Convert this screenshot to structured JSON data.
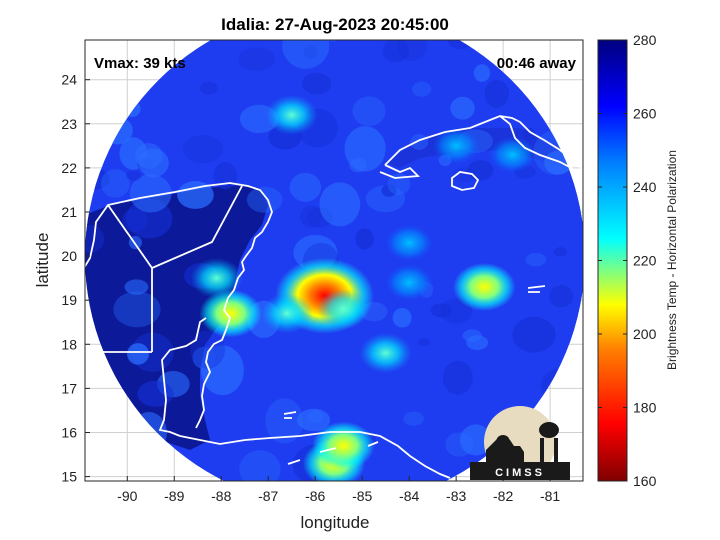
{
  "title": "Idalia: 27-Aug-2023 20:45:00",
  "vmax_label": "Vmax: 39 kts",
  "time_away_label": "00:46 away",
  "xlabel": "longitude",
  "ylabel": "latitude",
  "x_ticks": [
    "-90",
    "-89",
    "-88",
    "-87",
    "-86",
    "-85",
    "-84",
    "-83",
    "-82",
    "-81"
  ],
  "y_ticks": [
    "15",
    "16",
    "17",
    "18",
    "19",
    "20",
    "21",
    "22",
    "23",
    "24"
  ],
  "colorbar": {
    "label": "Brightness Temp - Horizontal Polarization",
    "ticks": [
      "160",
      "180",
      "200",
      "220",
      "240",
      "260",
      "280"
    ],
    "range": [
      160,
      280
    ],
    "colormap": [
      "#7f0000",
      "#ff0000",
      "#ff8000",
      "#ffff00",
      "#00ffff",
      "#0080ff",
      "#0000ff",
      "#00007f"
    ]
  },
  "logo": {
    "text": "CIMSS",
    "name": "cimss-logo"
  },
  "colors": {
    "ocean_field": "#1f3df0",
    "land_field": "#0c1a9a",
    "coastline": "#ffffff",
    "grid": "#c8c8c8"
  },
  "chart_data": {
    "type": "heatmap",
    "title": "Idalia: 27-Aug-2023 20:45:00",
    "xlabel": "longitude",
    "ylabel": "latitude",
    "xlim": [
      -90.9,
      -80.3
    ],
    "ylim": [
      14.9,
      24.9
    ],
    "value_units": "K",
    "color_range": [
      160,
      280
    ],
    "swath_center": [
      -85.2,
      19.9
    ],
    "swath_radius_deg": 5.0,
    "cold_features": [
      {
        "lon": -85.8,
        "lat": 19.1,
        "value": 185
      },
      {
        "lon": -82.4,
        "lat": 19.3,
        "value": 215
      },
      {
        "lon": -87.8,
        "lat": 18.7,
        "value": 200
      },
      {
        "lon": -86.6,
        "lat": 18.7,
        "value": 225
      },
      {
        "lon": -85.4,
        "lat": 18.8,
        "value": 230
      },
      {
        "lon": -84.5,
        "lat": 17.8,
        "value": 225
      },
      {
        "lon": -85.6,
        "lat": 15.3,
        "value": 200
      },
      {
        "lon": -85.4,
        "lat": 15.7,
        "value": 210
      },
      {
        "lon": -88.1,
        "lat": 19.5,
        "value": 225
      },
      {
        "lon": -84.0,
        "lat": 19.4,
        "value": 240
      },
      {
        "lon": -86.5,
        "lat": 23.2,
        "value": 230
      },
      {
        "lon": -83.0,
        "lat": 22.5,
        "value": 240
      },
      {
        "lon": -81.8,
        "lat": 22.3,
        "value": 235
      },
      {
        "lon": -84.0,
        "lat": 20.3,
        "value": 245
      }
    ]
  }
}
